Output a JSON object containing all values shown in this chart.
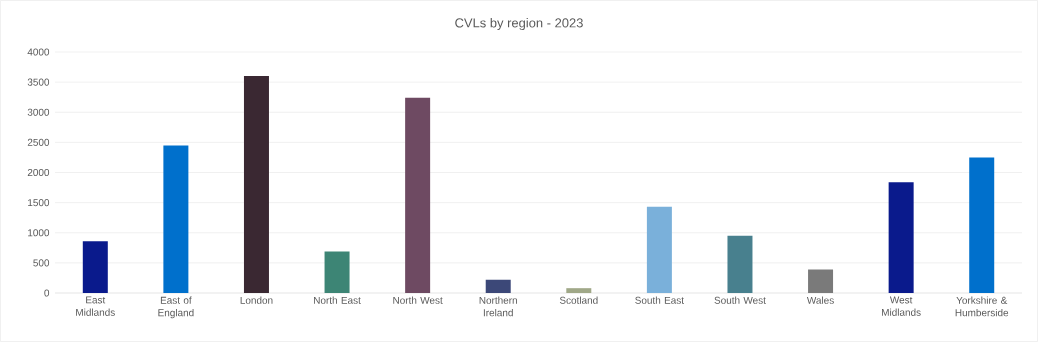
{
  "chart_data": {
    "type": "bar",
    "title": "CVLs by region - 2023",
    "categories": [
      "East Midlands",
      "East of England",
      "London",
      "North East",
      "North West",
      "Northern Ireland",
      "Scotland",
      "South East",
      "South West",
      "Wales",
      "West Midlands",
      "Yorkshire & Humberside"
    ],
    "values": [
      860,
      2450,
      3600,
      690,
      3240,
      220,
      80,
      1430,
      950,
      390,
      1840,
      2250
    ],
    "colors": [
      "#0a1a8c",
      "#0070cc",
      "#3a2832",
      "#3d8575",
      "#6e4a62",
      "#3c4878",
      "#a0a888",
      "#7ab0da",
      "#48808e",
      "#7a7a7a",
      "#0a1a8c",
      "#0070cc"
    ],
    "ylim": [
      0,
      4000
    ],
    "yticks": [
      0,
      500,
      1000,
      1500,
      2000,
      2500,
      3000,
      3500,
      4000
    ],
    "grid": "y"
  }
}
